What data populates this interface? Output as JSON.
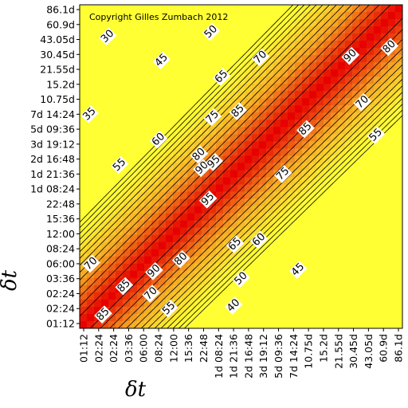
{
  "chart_data": {
    "type": "heatmap",
    "title": "",
    "annotation": "Copyright Gilles Zumbach 2012",
    "xlabel": "δt",
    "ylabel": "δt",
    "x_ticks": [
      "01:12",
      "02:24",
      "02:24",
      "03:36",
      "06:00",
      "08:24",
      "12:00",
      "15:36",
      "22:48",
      "1d 08:24",
      "1d 21:36",
      "2d 16:48",
      "3d 19:12",
      "5d 09:36",
      "7d 14:24",
      "10.75d",
      "15.2d",
      "21.55d",
      "30.45d",
      "43.05d",
      "60.9d",
      "86.1d"
    ],
    "y_ticks": [
      "01:12",
      "02:24",
      "02:24",
      "03:36",
      "06:00",
      "08:24",
      "12:00",
      "15:36",
      "22:48",
      "1d 08:24",
      "1d 21:36",
      "2d 16:48",
      "3d 19:12",
      "5d 09:36",
      "7d 14:24",
      "10.75d",
      "15.2d",
      "21.55d",
      "30.45d",
      "43.05d",
      "60.9d",
      "86.1d"
    ],
    "colorscale": [
      "#ffff33",
      "#f5a623",
      "#e60000"
    ],
    "contour_levels": [
      30,
      35,
      40,
      45,
      50,
      55,
      60,
      65,
      70,
      75,
      80,
      85,
      90,
      95
    ],
    "contour_labels": [
      {
        "text": "30",
        "x": 1.6,
        "y": 19.2
      },
      {
        "text": "35",
        "x": 0.4,
        "y": 14.0
      },
      {
        "text": "40",
        "x": 10.0,
        "y": 1.2
      },
      {
        "text": "45",
        "x": 5.2,
        "y": 17.6
      },
      {
        "text": "45",
        "x": 14.3,
        "y": 3.6
      },
      {
        "text": "50",
        "x": 8.5,
        "y": 19.5
      },
      {
        "text": "50",
        "x": 10.5,
        "y": 3.0
      },
      {
        "text": "55",
        "x": 2.4,
        "y": 10.6
      },
      {
        "text": "55",
        "x": 5.7,
        "y": 1.0
      },
      {
        "text": "55",
        "x": 19.5,
        "y": 12.6
      },
      {
        "text": "60",
        "x": 5.0,
        "y": 12.3
      },
      {
        "text": "60",
        "x": 11.7,
        "y": 5.6
      },
      {
        "text": "65",
        "x": 9.2,
        "y": 16.5
      },
      {
        "text": "65",
        "x": 10.1,
        "y": 5.3
      },
      {
        "text": "70",
        "x": 11.8,
        "y": 17.8
      },
      {
        "text": "70",
        "x": 0.5,
        "y": 4.0
      },
      {
        "text": "70",
        "x": 4.5,
        "y": 2.0
      },
      {
        "text": "70",
        "x": 18.6,
        "y": 14.8
      },
      {
        "text": "75",
        "x": 8.6,
        "y": 13.8
      },
      {
        "text": "75",
        "x": 13.3,
        "y": 10.0
      },
      {
        "text": "80",
        "x": 7.7,
        "y": 11.3
      },
      {
        "text": "80",
        "x": 6.5,
        "y": 4.3
      },
      {
        "text": "80",
        "x": 20.4,
        "y": 18.5
      },
      {
        "text": "85",
        "x": 10.3,
        "y": 14.2
      },
      {
        "text": "85",
        "x": 14.8,
        "y": 13.0
      },
      {
        "text": "85",
        "x": 2.7,
        "y": 2.5
      },
      {
        "text": "85",
        "x": 1.3,
        "y": 0.6
      },
      {
        "text": "90",
        "x": 7.9,
        "y": 10.4
      },
      {
        "text": "90",
        "x": 17.8,
        "y": 17.9
      },
      {
        "text": "90",
        "x": 4.7,
        "y": 3.5
      },
      {
        "text": "95",
        "x": 8.7,
        "y": 10.8
      },
      {
        "text": "95",
        "x": 8.3,
        "y": 8.3
      }
    ]
  }
}
